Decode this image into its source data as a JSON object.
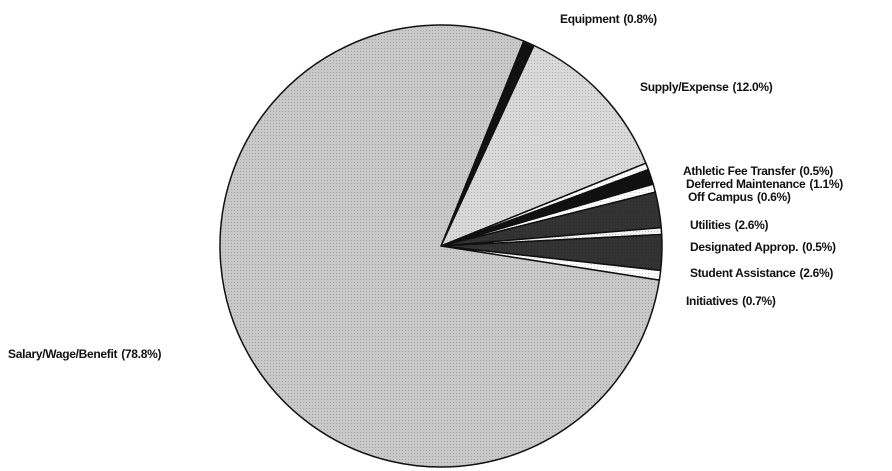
{
  "chart_data": {
    "type": "pie",
    "categories": [
      "Equipment",
      "Supply/Expense",
      "Athletic Fee Transfer",
      "Deferred Maintenance",
      "Off Campus",
      "Utilities",
      "Designated Approp.",
      "Student Assistance",
      "Initiatives",
      "Salary/Wage/Benefit"
    ],
    "values": [
      0.8,
      12.0,
      0.5,
      1.1,
      0.6,
      2.6,
      0.5,
      2.6,
      0.7,
      78.8
    ],
    "value_labels": [
      "(0.8%)",
      "(12.0%)",
      "(0.5%)",
      "(1.1%)",
      "(0.6%)",
      "(2.6%)",
      "(0.5%)",
      "(2.6%)",
      "(0.7%)",
      "(78.8%)"
    ],
    "colors": [
      "#111111",
      "#d9d9d9",
      "#ffffff",
      "#111111",
      "#ffffff",
      "#333333",
      "#f2f2f2",
      "#333333",
      "#ffffff",
      "#c9c9c9"
    ]
  }
}
